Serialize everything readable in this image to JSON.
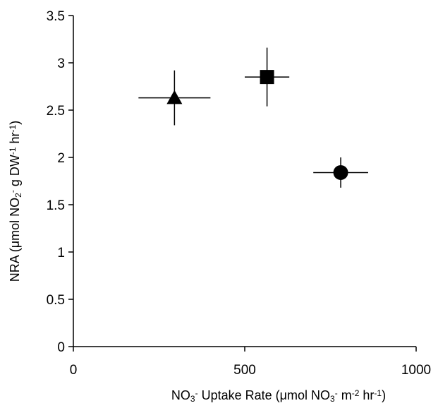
{
  "chart_data": {
    "type": "scatter",
    "title": "",
    "xlabel": {
      "parts": [
        {
          "t": "NO",
          "s": "normal"
        },
        {
          "t": "3",
          "s": "sub"
        },
        {
          "t": "-",
          "s": "sup"
        },
        {
          "t": " Uptake Rate (μmol NO",
          "s": "normal"
        },
        {
          "t": "3",
          "s": "sub"
        },
        {
          "t": "-",
          "s": "sup"
        },
        {
          "t": " m",
          "s": "normal"
        },
        {
          "t": "-2",
          "s": "sup"
        },
        {
          "t": " hr",
          "s": "normal"
        },
        {
          "t": "-1",
          "s": "sup"
        },
        {
          "t": ")",
          "s": "normal"
        }
      ]
    },
    "ylabel": {
      "parts": [
        {
          "t": "NRA (μmol NO",
          "s": "normal"
        },
        {
          "t": "2",
          "s": "sub"
        },
        {
          "t": "-",
          "s": "sup"
        },
        {
          "t": " g DW",
          "s": "normal"
        },
        {
          "t": "-1",
          "s": "sup"
        },
        {
          "t": " hr",
          "s": "normal"
        },
        {
          "t": "-1",
          "s": "sup"
        },
        {
          "t": ")",
          "s": "normal"
        }
      ]
    },
    "xlim": [
      0,
      1000
    ],
    "ylim": [
      0,
      3.5
    ],
    "xticks": [
      0,
      500,
      1000
    ],
    "xtick_labels": [
      "0",
      "500",
      "1000"
    ],
    "yticks": [
      0,
      0.5,
      1,
      1.5,
      2,
      2.5,
      3,
      3.5
    ],
    "ytick_labels": [
      "0",
      "0.5",
      "1",
      "1.5",
      "2",
      "2.5",
      "3",
      "3.5"
    ],
    "grid": false,
    "legend": "none",
    "color": "#000000",
    "points": [
      {
        "marker": "triangle",
        "x": 295,
        "y": 2.63,
        "xerr": 105,
        "yerr": 0.29
      },
      {
        "marker": "square",
        "x": 565,
        "y": 2.85,
        "xerr": 65,
        "yerr": 0.31
      },
      {
        "marker": "circle",
        "x": 780,
        "y": 1.84,
        "xerr": 80,
        "yerr": 0.16
      }
    ]
  }
}
